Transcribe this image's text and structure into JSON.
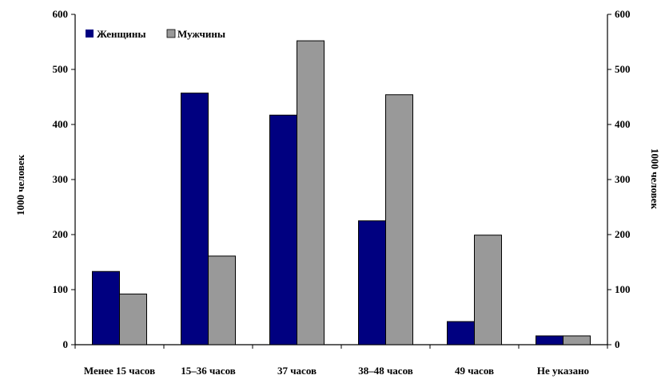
{
  "chart_data": {
    "type": "bar",
    "categories": [
      "Менее 15 часов",
      "15–36 часов",
      "37 часов",
      "38–48 часов",
      "49 часов",
      "Не указано"
    ],
    "series": [
      {
        "name": "Женщины",
        "values": [
          133,
          457,
          417,
          225,
          42,
          16
        ],
        "color": "#000080"
      },
      {
        "name": "Мужчины",
        "values": [
          92,
          161,
          552,
          454,
          199,
          16
        ],
        "color": "#999999"
      }
    ],
    "ylabel_left": "1000 человек",
    "ylabel_right": "1000 человек",
    "ylim": [
      0,
      600
    ],
    "yticks": [
      0,
      100,
      200,
      300,
      400,
      500,
      600
    ],
    "legend_position": "top-left",
    "grid": false
  }
}
